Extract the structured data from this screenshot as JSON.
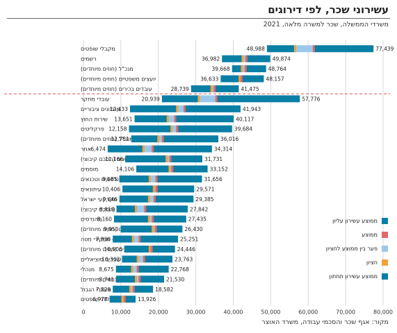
{
  "header": {
    "title": "עשירוני שכר, לפי דירוגים",
    "subtitle": "משרדי הממשלה, שכר למשרה מלאה, 2021",
    "source": "מקור: אגף שכר והסכמי עבודה, משרד האוצר"
  },
  "colors": {
    "top": "#0a7fa6",
    "median": "#e06a6a",
    "gap": "#9cc9ea",
    "bottom_mark": "#f2a23a",
    "bottom": "#0a7fa6",
    "dashed_line": "#e05050",
    "grid": "#d8d8d8"
  },
  "chart_data": {
    "type": "bar",
    "orientation": "horizontal-floating",
    "xlim": [
      0,
      80000
    ],
    "xticks": [
      "0",
      "10,000",
      "20,000",
      "30,000",
      "40,000",
      "50,000",
      "60,000",
      "70,000",
      "80,000"
    ],
    "xtick_values": [
      0,
      10000,
      20000,
      30000,
      40000,
      50000,
      60000,
      70000,
      80000
    ],
    "legend": {
      "placement": "right",
      "entries": [
        {
          "key": "top",
          "label": "ממוצע עשירון עליון"
        },
        {
          "key": "median",
          "label": "ממוצע"
        },
        {
          "key": "gap",
          "label": "פער בין ממוצע לחציון"
        },
        {
          "key": "bottom_mark",
          "label": "חציון"
        },
        {
          "key": "bottom",
          "label": "ממוצע עשירון תחתון"
        }
      ]
    },
    "rows": [
      {
        "label": "מקבלי שופטים",
        "low": 48988,
        "median": 56500,
        "mean": 61500,
        "high": 77439,
        "low_label": "48,988",
        "high_label": "77,439"
      },
      {
        "label": "רשמים",
        "low": 36982,
        "median": 42500,
        "mean": 43500,
        "high": 49874,
        "low_label": "36,982",
        "high_label": "49,874"
      },
      {
        "label": "מנכ\"ל (חוזים מיוחדים)",
        "low": 39668,
        "median": 42300,
        "mean": 43300,
        "high": 48764,
        "low_label": "39,668",
        "high_label": "48,764"
      },
      {
        "label": "יועצים משפטיים (חוזים מיוחדים)",
        "low": 36633,
        "median": 41700,
        "mean": 42200,
        "high": 48157,
        "low_label": "36,633",
        "high_label": "48,157"
      },
      {
        "label": "עובדים בכירים (חוזים מיוחדים)",
        "low": 28739,
        "median": 34200,
        "mean": 35000,
        "high": 41475,
        "low_label": "28,739",
        "high_label": "41,475"
      },
      {
        "label": "עובדי מחקר",
        "low": 20939,
        "median": 30800,
        "mean": 35500,
        "high": 57776,
        "low_label": "20,939",
        "high_label": "57,776"
      },
      {
        "label": "מנגנונים ציבוריים",
        "low": 12433,
        "median": 25000,
        "mean": 27000,
        "high": 41943,
        "low_label": "12,433",
        "high_label": "41,943"
      },
      {
        "label": "שירות החוץ",
        "low": 13651,
        "median": 22500,
        "mean": 24500,
        "high": 40117,
        "low_label": "13,651",
        "high_label": "40,117"
      },
      {
        "label": "פרקליטים",
        "low": 12158,
        "median": 23500,
        "mean": 25000,
        "high": 39684,
        "low_label": "12,158",
        "high_label": "39,684"
      },
      {
        "label": "לשכות שר ומנכ\"ל (חוזים מיוחדים)",
        "low": 12761,
        "median": 20000,
        "mean": 21200,
        "high": 36016,
        "low_label": "12,761",
        "high_label": "36,016"
      },
      {
        "label": "אחר",
        "low": 6474,
        "median": 16000,
        "mean": 18500,
        "high": 34314,
        "low_label": "6,474",
        "high_label": "34,314"
      },
      {
        "label": "משפטנים (הסכם קיבוצי)",
        "low": 11166,
        "median": 22200,
        "mean": 23200,
        "high": 31731,
        "low_label": "11,166",
        "high_label": "31,731"
      },
      {
        "label": "מוסמים",
        "low": 14106,
        "median": 23000,
        "mean": 23700,
        "high": 33152,
        "low_label": "14,106",
        "high_label": "33,152"
      },
      {
        "label": "הנדסאים וטכנאים",
        "low": 9585,
        "median": 17700,
        "mean": 19500,
        "high": 31656,
        "low_label": "9,585",
        "high_label": "31,656"
      },
      {
        "label": "עיתונאים",
        "low": 10406,
        "median": 18800,
        "mean": 19500,
        "high": 29571,
        "low_label": "10,406",
        "high_label": "29,571"
      },
      {
        "label": "רשות מקרקעי ישראל",
        "low": 9646,
        "median": 17500,
        "mean": 19000,
        "high": 29385,
        "low_label": "9,646",
        "high_label": "29,385"
      },
      {
        "label": "אקדמאים (הסכם קיבוצי)",
        "low": 8818,
        "median": 14000,
        "mean": 16500,
        "high": 27842,
        "low_label": "8,818",
        "high_label": "27,842"
      },
      {
        "label": "מהנדסים",
        "low": 8160,
        "median": 17500,
        "mean": 18500,
        "high": 27435,
        "low_label": "8,160",
        "high_label": "27,435"
      },
      {
        "label": "משפטנים (חוזים מיוחדים)",
        "low": 9950,
        "median": 18500,
        "mean": 19300,
        "high": 26430,
        "low_label": "9,950",
        "high_label": "26,430"
      },
      {
        "label": "עובדי הוראה - תפקידי מטה",
        "low": 7830,
        "median": 13200,
        "mean": 15000,
        "high": 25251,
        "low_label": "7,830",
        "high_label": "25,251"
      },
      {
        "label": "כלכלנים (חוזים מיוחדים)",
        "low": 10906,
        "median": 17700,
        "mean": 18200,
        "high": 24446,
        "low_label": "10,906",
        "high_label": "24,446"
      },
      {
        "label": "עובדים סוציאליים",
        "low": 10302,
        "median": 14500,
        "mean": 16200,
        "high": 23763,
        "low_label": "10,302",
        "high_label": "23,763"
      },
      {
        "label": "מנהלי",
        "low": 8675,
        "median": 13000,
        "mean": 14500,
        "high": 22768,
        "low_label": "8,675",
        "high_label": "22,768"
      },
      {
        "label": "אקדמאים (חוזים מיוחדים)",
        "low": 8741,
        "median": 14000,
        "mean": 15000,
        "high": 21530,
        "low_label": "8,741",
        "high_label": "21,530"
      },
      {
        "label": "עובדי מעברי הגבול",
        "low": 7829,
        "median": 12500,
        "mean": 13400,
        "high": 18582,
        "low_label": "7,829",
        "high_label": "18,582"
      },
      {
        "label": "קלדני שופטים",
        "low": 6978,
        "median": 10400,
        "mean": 11000,
        "high": 13926,
        "low_label": "6,978",
        "high_label": "13,926"
      }
    ],
    "separator_after_row": 4
  }
}
